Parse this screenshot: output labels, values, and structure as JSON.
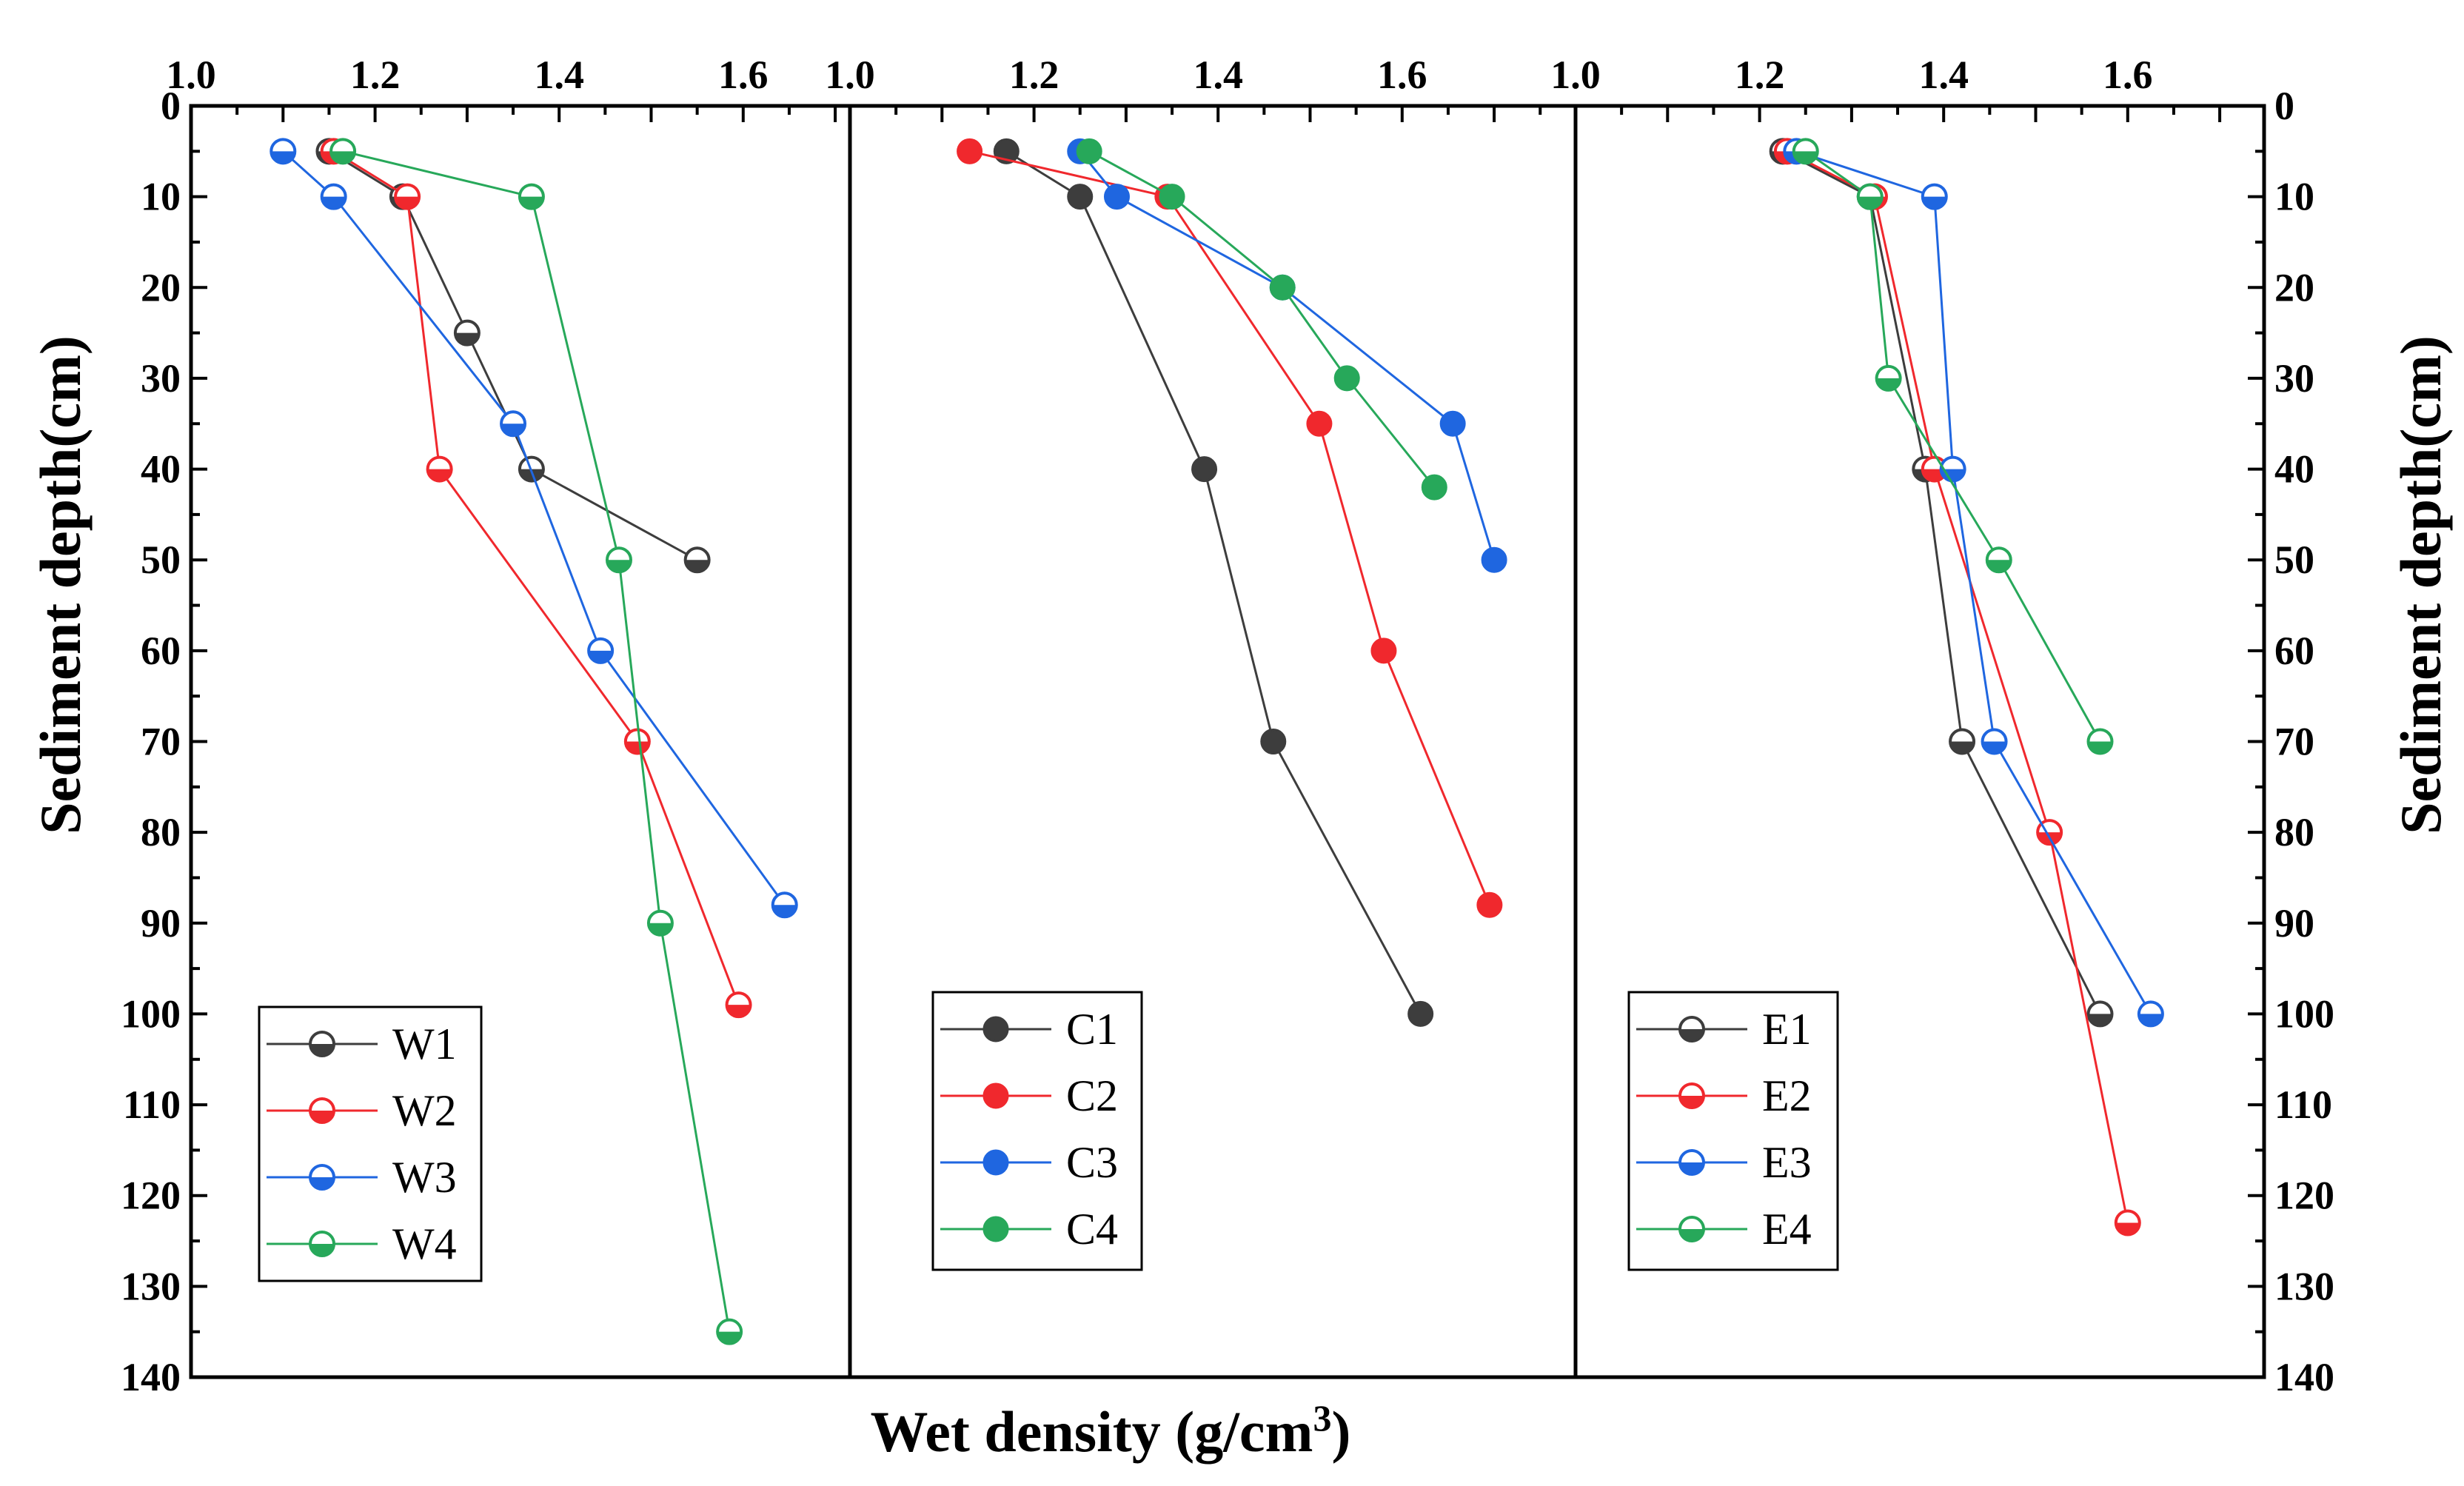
{
  "chart_data": {
    "type": "line",
    "xlabel": "Wet density",
    "xlabel_unit_prefix": "(g/cm",
    "xlabel_unit_exp": "3",
    "xlabel_unit_suffix": ")",
    "ylabel": "Sediment depth(cm)",
    "xlim": [
      1.0,
      1.75
    ],
    "ylim": [
      0,
      140
    ],
    "x_ticks": [
      1.0,
      1.2,
      1.4,
      1.6
    ],
    "x_tick_labels": [
      "1.0",
      "1.2",
      "1.4",
      "1.6"
    ],
    "y_ticks": [
      0,
      10,
      20,
      30,
      40,
      50,
      60,
      70,
      80,
      90,
      100,
      110,
      120,
      130,
      140
    ],
    "y_tick_labels": [
      "0",
      "10",
      "20",
      "30",
      "40",
      "50",
      "60",
      "70",
      "80",
      "90",
      "100",
      "110",
      "120",
      "130",
      "140"
    ],
    "colors": {
      "1": "#3d3d3d",
      "2": "#f0282d",
      "3": "#1f66e0",
      "4": "#27a85a"
    },
    "panels": [
      {
        "name": "W",
        "marker": "half-open",
        "series": [
          {
            "name": "W1",
            "color_key": "1",
            "points": [
              [
                1.15,
                5
              ],
              [
                1.23,
                10
              ],
              [
                1.3,
                25
              ],
              [
                1.37,
                40
              ],
              [
                1.55,
                50
              ]
            ]
          },
          {
            "name": "W2",
            "color_key": "2",
            "points": [
              [
                1.155,
                5
              ],
              [
                1.235,
                10
              ],
              [
                1.27,
                40
              ],
              [
                1.485,
                70
              ],
              [
                1.595,
                99
              ]
            ]
          },
          {
            "name": "W3",
            "color_key": "3",
            "points": [
              [
                1.1,
                5
              ],
              [
                1.155,
                10
              ],
              [
                1.35,
                35
              ],
              [
                1.445,
                60
              ],
              [
                1.645,
                88
              ]
            ]
          },
          {
            "name": "W4",
            "color_key": "4",
            "points": [
              [
                1.165,
                5
              ],
              [
                1.37,
                10
              ],
              [
                1.465,
                50
              ],
              [
                1.51,
                90
              ],
              [
                1.585,
                135
              ]
            ]
          }
        ]
      },
      {
        "name": "C",
        "marker": "filled",
        "series": [
          {
            "name": "C1",
            "color_key": "1",
            "points": [
              [
                1.17,
                5
              ],
              [
                1.25,
                10
              ],
              [
                1.385,
                40
              ],
              [
                1.46,
                70
              ],
              [
                1.62,
                100
              ]
            ]
          },
          {
            "name": "C2",
            "color_key": "2",
            "points": [
              [
                1.13,
                5
              ],
              [
                1.345,
                10
              ],
              [
                1.51,
                35
              ],
              [
                1.58,
                60
              ],
              [
                1.695,
                88
              ]
            ]
          },
          {
            "name": "C3",
            "color_key": "3",
            "points": [
              [
                1.25,
                5
              ],
              [
                1.29,
                10
              ],
              [
                1.47,
                20
              ],
              [
                1.655,
                35
              ],
              [
                1.7,
                50
              ]
            ]
          },
          {
            "name": "C4",
            "color_key": "4",
            "points": [
              [
                1.26,
                5
              ],
              [
                1.35,
                10
              ],
              [
                1.47,
                20
              ],
              [
                1.54,
                30
              ],
              [
                1.635,
                42
              ]
            ]
          }
        ]
      },
      {
        "name": "E",
        "marker": "half-open",
        "series": [
          {
            "name": "E1",
            "color_key": "1",
            "points": [
              [
                1.225,
                5
              ],
              [
                1.32,
                10
              ],
              [
                1.38,
                40
              ],
              [
                1.42,
                70
              ],
              [
                1.57,
                100
              ]
            ]
          },
          {
            "name": "E2",
            "color_key": "2",
            "points": [
              [
                1.23,
                5
              ],
              [
                1.325,
                10
              ],
              [
                1.39,
                40
              ],
              [
                1.515,
                80
              ],
              [
                1.6,
                123
              ]
            ]
          },
          {
            "name": "E3",
            "color_key": "3",
            "points": [
              [
                1.24,
                5
              ],
              [
                1.39,
                10
              ],
              [
                1.41,
                40
              ],
              [
                1.455,
                70
              ],
              [
                1.625,
                100
              ]
            ]
          },
          {
            "name": "E4",
            "color_key": "4",
            "points": [
              [
                1.25,
                5
              ],
              [
                1.32,
                10
              ],
              [
                1.34,
                30
              ],
              [
                1.46,
                50
              ],
              [
                1.57,
                70
              ]
            ]
          }
        ]
      }
    ]
  }
}
